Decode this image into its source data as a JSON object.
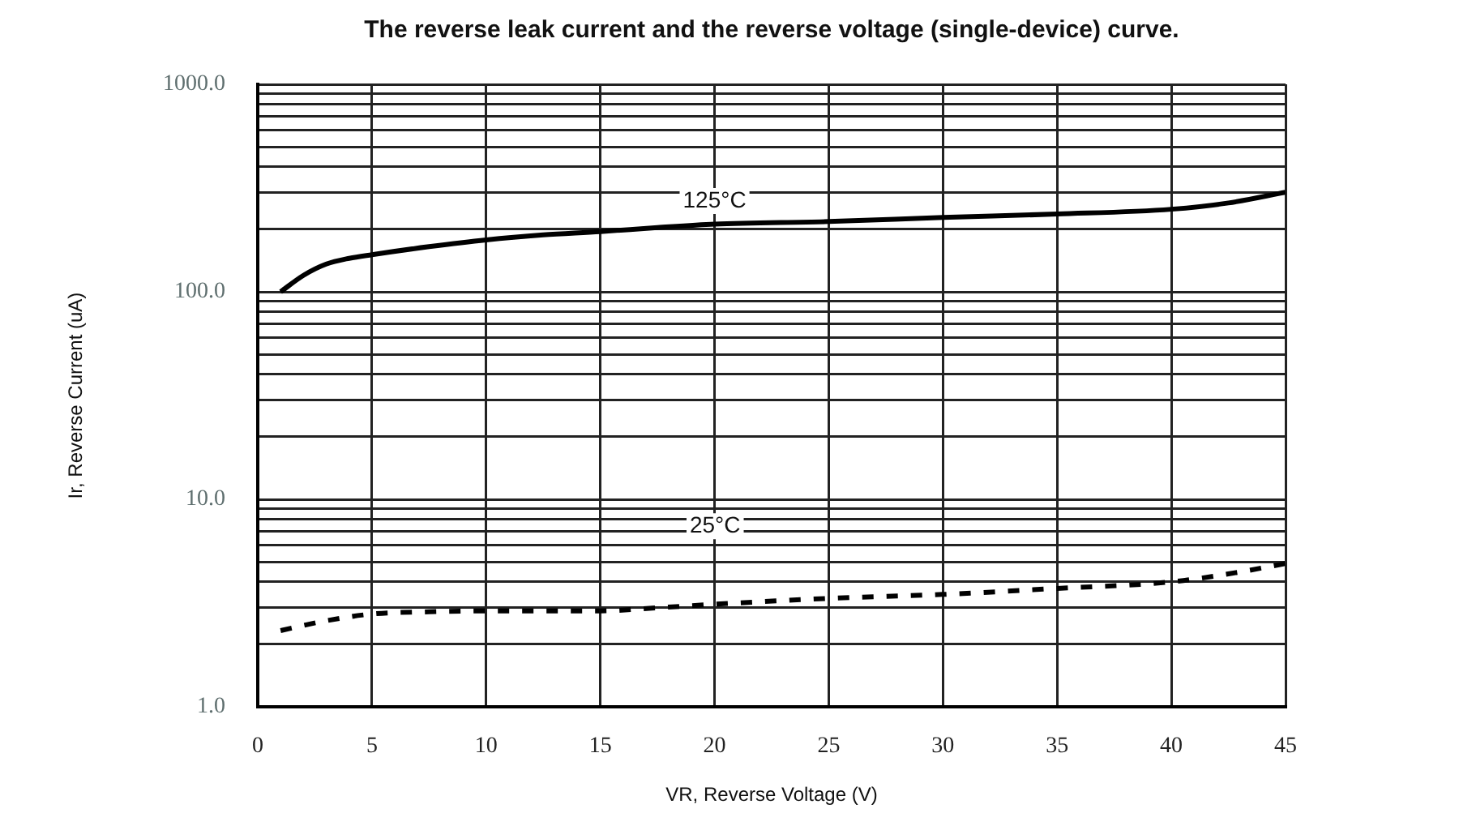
{
  "chart_data": {
    "type": "line",
    "title": "The reverse leak current and the reverse voltage (single-device) curve.",
    "xlabel": "VR, Reverse Voltage (V)",
    "ylabel": "Ir, Reverse Current (uA)",
    "series": [
      {
        "color": "#000000",
        "line_style": "solid",
        "x": [
          1,
          2,
          3,
          4,
          5,
          7.5,
          10,
          12.5,
          15,
          17.5,
          20,
          25,
          30,
          35,
          40,
          42.5,
          45
        ],
        "values": [
          100,
          120,
          136,
          145,
          151,
          165,
          178,
          188,
          195,
          204,
          212,
          218,
          228,
          237,
          250,
          268,
          302
        ]
      },
      {
        "color": "#000000",
        "line_style": "dashed",
        "x": [
          1,
          3,
          5,
          7.5,
          10,
          12.5,
          15,
          17.5,
          20,
          25,
          30,
          35,
          40,
          42.5,
          45
        ],
        "values": [
          2.33,
          2.6,
          2.8,
          2.87,
          2.9,
          2.9,
          2.9,
          3.0,
          3.12,
          3.33,
          3.48,
          3.72,
          4.0,
          4.37,
          4.9
        ]
      }
    ],
    "annotations": [
      {
        "text": "125°C",
        "x": 20,
        "y": 213
      },
      "25°C"
    ],
    "xlim": [
      0,
      45
    ],
    "xticks": [
      0,
      5,
      10,
      15,
      20,
      25,
      30,
      35,
      40,
      45
    ],
    "ylim": [
      1,
      1000
    ],
    "yticks": [
      {
        "value": 1,
        "label": "1.0"
      },
      {
        "value": 2,
        "label": null
      },
      {
        "value": 3,
        "label": null
      },
      {
        "value": 4,
        "label": null
      },
      {
        "value": 5,
        "label": null
      },
      {
        "value": 6,
        "label": null
      },
      {
        "value": 7,
        "label": null
      },
      {
        "value": 8,
        "label": null
      },
      {
        "value": 9,
        "label": null
      },
      {
        "value": 10,
        "label": "10.0"
      },
      {
        "value": 20,
        "label": null
      },
      {
        "value": 30,
        "label": null
      },
      {
        "value": 40,
        "label": null
      },
      {
        "value": 50,
        "label": null
      },
      {
        "value": 60,
        "label": null
      },
      {
        "value": 70,
        "label": null
      },
      {
        "value": 80,
        "label": null
      },
      {
        "value": 90,
        "label": null
      },
      {
        "value": 100,
        "label": "100.0"
      },
      {
        "value": 200,
        "label": null
      },
      {
        "value": 300,
        "label": null
      },
      {
        "value": 400,
        "label": null
      },
      {
        "value": 500,
        "label": null
      },
      {
        "value": 600,
        "label": null
      },
      {
        "value": 700,
        "label": null
      },
      {
        "value": 800,
        "label": null
      },
      {
        "value": 900,
        "label": null
      },
      {
        "value": 1000,
        "label": "1000.0"
      }
    ],
    "log": true,
    "grid": true,
    "legend": false,
    "marker": "none"
  }
}
